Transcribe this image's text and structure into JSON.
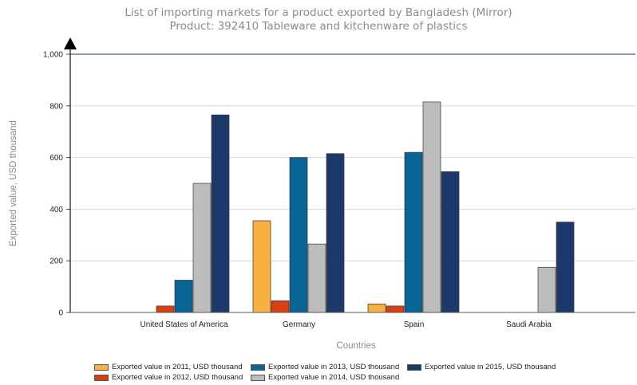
{
  "header": {
    "title_line1": "List of importing markets for a product exported by Bangladesh (Mirror)",
    "title_line2": "Product: 392410 Tableware and kitchenware of plastics"
  },
  "chart_data": {
    "type": "bar",
    "title": "List of importing markets for a product exported by Bangladesh (Mirror)",
    "subtitle": "Product: 392410 Tableware and kitchenware of plastics",
    "xlabel": "Countries",
    "ylabel": "Exported value, USD thousand",
    "ylim": [
      0,
      1000
    ],
    "yticks": [
      0,
      200,
      400,
      600,
      800,
      1000
    ],
    "ytick_labels": [
      "0",
      "200",
      "400",
      "600",
      "800",
      "1,000"
    ],
    "categories": [
      "United States of America",
      "Germany",
      "Spain",
      "Saudi Arabia"
    ],
    "series": [
      {
        "name": "Exported value in 2011, USD thousand",
        "color": "#F9B040",
        "values": [
          0,
          355,
          33,
          0
        ]
      },
      {
        "name": "Exported value in 2012, USD thousand",
        "color": "#D9400F",
        "values": [
          25,
          45,
          25,
          0
        ]
      },
      {
        "name": "Exported value in 2013, USD thousand",
        "color": "#0B6496",
        "values": [
          125,
          600,
          620,
          0
        ]
      },
      {
        "name": "Exported value in 2014, USD thousand",
        "color": "#BDBDBD",
        "values": [
          500,
          265,
          815,
          175
        ]
      },
      {
        "name": "Exported value in 2015, USD thousand",
        "color": "#1B3A6B",
        "values": [
          765,
          615,
          545,
          350
        ]
      }
    ],
    "grid": "horizontal",
    "legend_position": "bottom"
  }
}
